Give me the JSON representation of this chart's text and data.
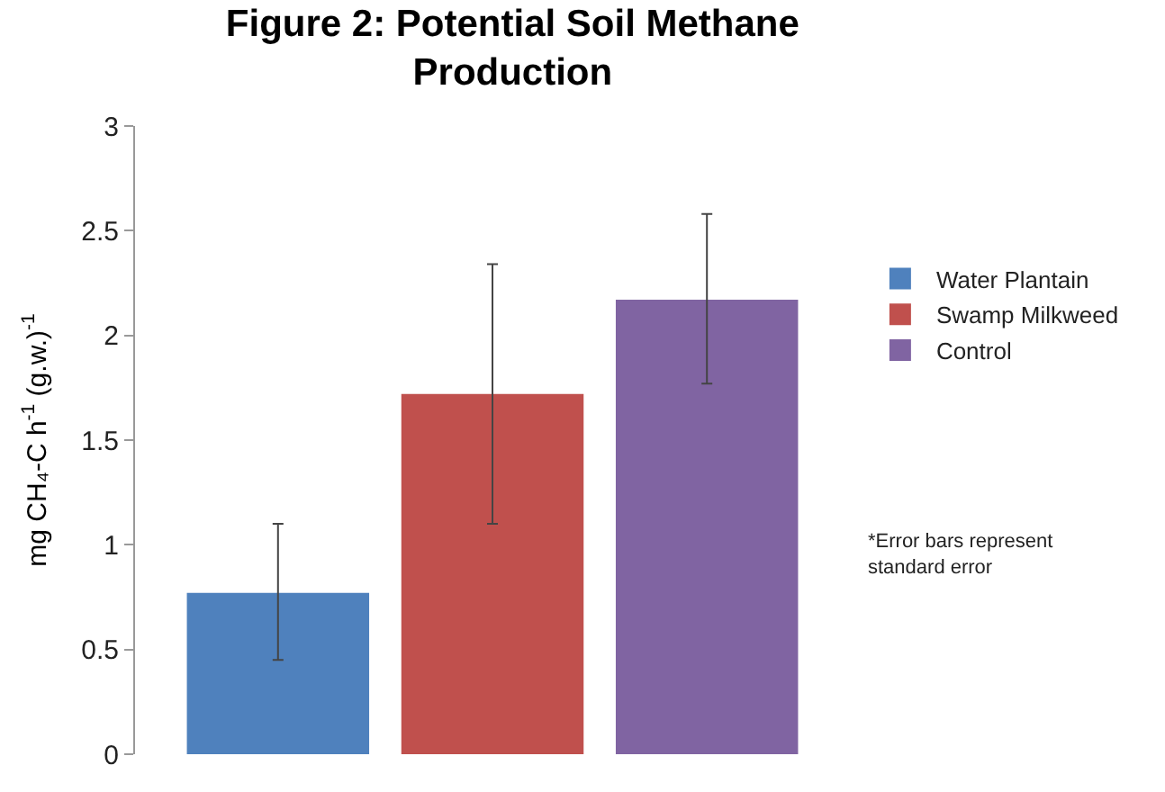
{
  "chart_data": {
    "type": "bar",
    "title": "Figure 2: Potential Soil Methane Production",
    "ylabel": "mg CH₄-C h$^{-1}$ (g.w.)$^{-1}$",
    "categories": [
      null
    ],
    "series": [
      {
        "name": "Water Plantain",
        "color": "#4f81bd",
        "values": [
          0.77
        ],
        "errors": [
          [
            0.45,
            1.1
          ]
        ]
      },
      {
        "name": "Swamp Milkweed",
        "color": "#c0504d",
        "values": [
          1.72
        ],
        "errors": [
          [
            1.1,
            2.34
          ]
        ]
      },
      {
        "name": "Control",
        "color": "#8064a2",
        "values": [
          2.17
        ],
        "errors": [
          [
            1.77,
            2.58
          ]
        ]
      }
    ],
    "ylim": [
      0,
      3
    ],
    "yticks": [
      0,
      0.5,
      1,
      1.5,
      2,
      2.5,
      3
    ],
    "legend": "right",
    "annotations": [
      "*Error bars represent standard error"
    ]
  }
}
